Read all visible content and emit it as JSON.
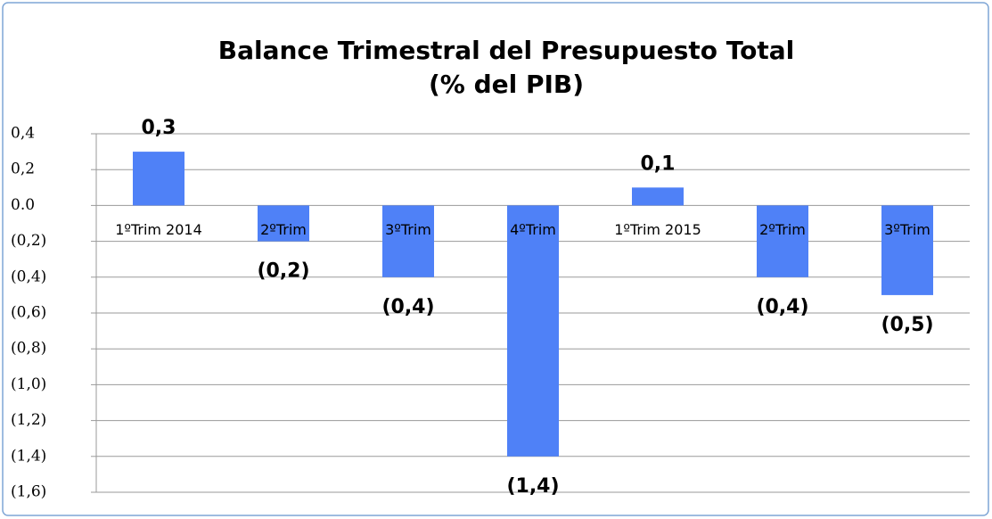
{
  "chart_data": {
    "type": "bar",
    "title": "Balance Trimestral del Presupuesto Total",
    "subtitle": "(% del PIB)",
    "categories": [
      "1ºTrim 2014",
      "2ºTrim",
      "3ºTrim",
      "4ºTrim",
      "1ºTrim 2015",
      "2ºTrim",
      "3ºTrim"
    ],
    "values": [
      0.3,
      -0.2,
      -0.4,
      -1.4,
      0.1,
      -0.4,
      -0.5
    ],
    "value_labels": [
      "0,3",
      "(0,2)",
      "(0,4)",
      "(1,4)",
      "0,1",
      "(0,4)",
      "(0,5)"
    ],
    "color": "#4f81f7",
    "ylim": [
      -1.6,
      0.4
    ],
    "yticks": [
      {
        "value": 0.4,
        "label": "0,4"
      },
      {
        "value": 0.2,
        "label": "0,2"
      },
      {
        "value": 0,
        "label": "0.0"
      },
      {
        "value": -0.2,
        "label": "(0,2)"
      },
      {
        "value": -0.4,
        "label": "(0,4)"
      },
      {
        "value": -0.6,
        "label": "(0,6)"
      },
      {
        "value": -0.8,
        "label": "(0,8)"
      },
      {
        "value": -1.0,
        "label": "(1,0)"
      },
      {
        "value": -1.2,
        "label": "(1,2)"
      },
      {
        "value": -1.4,
        "label": "(1,4)"
      },
      {
        "value": -1.6,
        "label": "(1,6)"
      }
    ],
    "grid": true
  }
}
